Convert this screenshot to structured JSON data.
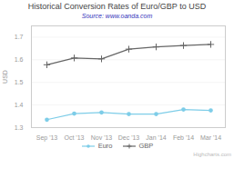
{
  "chart_data": {
    "type": "line",
    "title": "Historical Conversion Rates of Euro/GBP to USD",
    "subtitle": "Source: www.oanda.com",
    "ylabel": "USD",
    "categories": [
      "Sep '13",
      "Oct '13",
      "Nov '13",
      "Dec '13",
      "Jan '14",
      "Feb '14",
      "Mar '14"
    ],
    "series": [
      {
        "name": "Euro",
        "color": "#7ecde8",
        "marker": "circle",
        "values": [
          1.335,
          1.362,
          1.367,
          1.36,
          1.36,
          1.38,
          1.376
        ]
      },
      {
        "name": "GBP",
        "color": "#666666",
        "marker": "plus",
        "values": [
          1.578,
          1.608,
          1.604,
          1.647,
          1.657,
          1.663,
          1.668
        ]
      }
    ],
    "ylim": [
      1.3,
      1.75
    ],
    "yticks": [
      1.3,
      1.4,
      1.5,
      1.6,
      1.7
    ],
    "grid": true,
    "legend": "bottom",
    "annotations": [
      "Highcharts.com"
    ]
  }
}
